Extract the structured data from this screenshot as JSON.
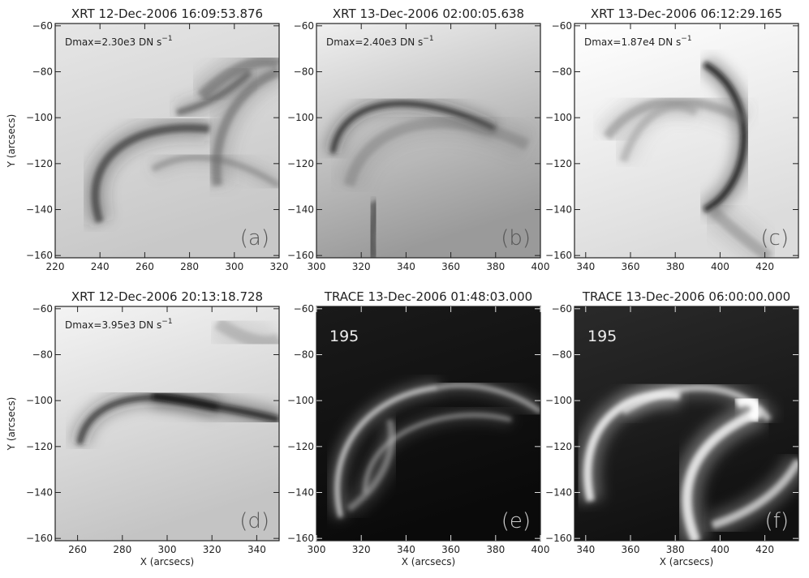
{
  "figure": {
    "panels": [
      {
        "title": "XRT 12-Dec-2006 16:09:53.876",
        "dmax": {
          "text": "Dmax=2.30e3 DN s",
          "sup": "−1"
        },
        "label": "(a)",
        "xlim": [
          220,
          320
        ],
        "ylim": [
          -161,
          -59
        ],
        "xticks": [
          220,
          240,
          260,
          280,
          300,
          320
        ],
        "yticks": [
          {
            "value": -60,
            "label": "−60"
          },
          {
            "value": -80,
            "label": "−80"
          },
          {
            "value": -100,
            "label": "−100"
          },
          {
            "value": -120,
            "label": "−120"
          },
          {
            "value": -140,
            "label": "−140"
          },
          {
            "value": -160,
            "label": "−160"
          }
        ],
        "ylabel": "Y (arcsecs)"
      },
      {
        "title": "XRT 13-Dec-2006 02:00:05.638",
        "dmax": {
          "text": "Dmax=2.40e3 DN s",
          "sup": "−1"
        },
        "label": "(b)",
        "xlim": [
          300,
          400
        ],
        "ylim": [
          -161,
          -59
        ],
        "xticks": [
          300,
          320,
          340,
          360,
          380,
          400
        ],
        "yticks": [
          {
            "value": -60,
            "label": "−60"
          },
          {
            "value": -80,
            "label": "−80"
          },
          {
            "value": -100,
            "label": "−100"
          },
          {
            "value": -120,
            "label": "−120"
          },
          {
            "value": -140,
            "label": "−140"
          },
          {
            "value": -160,
            "label": "−160"
          }
        ]
      },
      {
        "title": "XRT 13-Dec-2006 06:12:29.165",
        "dmax": {
          "text": "Dmax=1.87e4 DN s",
          "sup": "−1"
        },
        "label": "(c)",
        "xlim": [
          335,
          435
        ],
        "ylim": [
          -161,
          -59
        ],
        "xticks": [
          340,
          360,
          380,
          400,
          420
        ],
        "yticks": [
          {
            "value": -60,
            "label": "−60"
          },
          {
            "value": -80,
            "label": "−80"
          },
          {
            "value": -100,
            "label": "−100"
          },
          {
            "value": -120,
            "label": "−120"
          },
          {
            "value": -140,
            "label": "−140"
          },
          {
            "value": -160,
            "label": "−160"
          }
        ]
      },
      {
        "title": "XRT 12-Dec-2006 20:13:18.728",
        "dmax": {
          "text": "Dmax=3.95e3 DN s",
          "sup": "−1"
        },
        "label": "(d)",
        "xlim": [
          250,
          350
        ],
        "ylim": [
          -161,
          -59
        ],
        "xticks": [
          260,
          280,
          300,
          320,
          340
        ],
        "yticks": [
          {
            "value": -60,
            "label": "−60"
          },
          {
            "value": -80,
            "label": "−80"
          },
          {
            "value": -100,
            "label": "−100"
          },
          {
            "value": -120,
            "label": "−120"
          },
          {
            "value": -140,
            "label": "−140"
          },
          {
            "value": -160,
            "label": "−160"
          }
        ],
        "ylabel": "Y (arcsecs)",
        "xlabel": "X (arcsecs)"
      },
      {
        "title": "TRACE 13-Dec-2006 01:48:03.000",
        "wavelength": "195",
        "label": "(e)",
        "xlim": [
          300,
          400
        ],
        "ylim": [
          -161,
          -59
        ],
        "xticks": [
          300,
          320,
          340,
          360,
          380,
          400
        ],
        "yticks": [
          {
            "value": -60,
            "label": "−60"
          },
          {
            "value": -80,
            "label": "−80"
          },
          {
            "value": -100,
            "label": "−100"
          },
          {
            "value": -120,
            "label": "−120"
          },
          {
            "value": -140,
            "label": "−140"
          },
          {
            "value": -160,
            "label": "−160"
          }
        ],
        "xlabel": "X (arcsecs)"
      },
      {
        "title": "TRACE 13-Dec-2006 06:00:00.000",
        "wavelength": "195",
        "label": "(f)",
        "xlim": [
          335,
          435
        ],
        "ylim": [
          -161,
          -59
        ],
        "xticks": [
          340,
          360,
          380,
          400,
          420
        ],
        "yticks": [
          {
            "value": -60,
            "label": "−60"
          },
          {
            "value": -80,
            "label": "−80"
          },
          {
            "value": -100,
            "label": "−100"
          },
          {
            "value": -120,
            "label": "−120"
          },
          {
            "value": -140,
            "label": "−140"
          },
          {
            "value": -160,
            "label": "−160"
          }
        ],
        "xlabel": "X (arcsecs)"
      }
    ]
  }
}
